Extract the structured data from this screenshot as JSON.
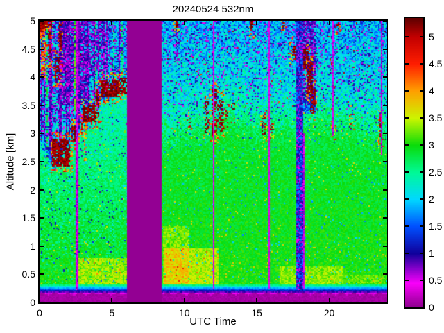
{
  "chart_data": {
    "type": "heatmap",
    "title": "20240524 532nm",
    "xlabel": "UTC Time",
    "ylabel": "Altitude [km]",
    "xlim": [
      0,
      24
    ],
    "ylim": [
      0,
      5
    ],
    "grid": false,
    "xticks": {
      "values": [
        0,
        5,
        10,
        15,
        20
      ],
      "labels": [
        "0",
        "5",
        "10",
        "15",
        "20"
      ]
    },
    "yticks": {
      "values": [
        0,
        0.5,
        1,
        1.5,
        2,
        2.5,
        3,
        3.5,
        4,
        4.5,
        5
      ],
      "labels": [
        "0",
        "0.5",
        "1",
        "1.5",
        "2",
        "2.5",
        "3",
        "3.5",
        "4",
        "4.5",
        "5"
      ]
    },
    "colorbar": {
      "min": 0,
      "max": 5.35,
      "ticks": [
        0,
        0.5,
        1,
        1.5,
        2,
        2.5,
        3,
        3.5,
        4,
        4.5,
        5
      ],
      "labels": [
        "0",
        "0.5",
        "1",
        "1.5",
        "2",
        "2.5",
        "3",
        "3.5",
        "4",
        "4.5",
        "5"
      ],
      "position": "right"
    },
    "colormap": [
      [
        0,
        "#8C008C"
      ],
      [
        0.45,
        "#FA00FA"
      ],
      [
        1,
        "#10009B"
      ],
      [
        1.5,
        "#0050FF"
      ],
      [
        2,
        "#00D8FF"
      ],
      [
        2.5,
        "#00FA96"
      ],
      [
        3,
        "#0ADC0A"
      ],
      [
        3.5,
        "#CCF500"
      ],
      [
        4,
        "#FFA000"
      ],
      [
        4.5,
        "#FF1E00"
      ],
      [
        5,
        "#C30000"
      ],
      [
        5.35,
        "#5F0000"
      ]
    ],
    "field": {
      "comment": "lidar backscatter field: data gap (UTC), aerosol layer-top polylines [t,km], bright near-surface patches, low-signal purple zones, high-backscatter blobs [t0,t1,z0,z1,density,value,jitter], vertical stripes [t,width,z0,z1,value,jitter]",
      "gap": [
        6.05,
        8.43
      ],
      "surface_magenta_top_km": 0.155,
      "surface_blue_band_top_km": 0.31,
      "layer_left": [
        [
          0,
          2.9
        ],
        [
          0.5,
          2.6
        ],
        [
          1.1,
          2.45
        ],
        [
          1.7,
          2.8
        ],
        [
          2.3,
          3.0
        ],
        [
          3.0,
          3.15
        ],
        [
          3.9,
          3.35
        ],
        [
          4.3,
          3.6
        ],
        [
          5.0,
          3.8
        ],
        [
          5.6,
          3.95
        ],
        [
          6.05,
          4.05
        ]
      ],
      "layer_right": [
        [
          8.43,
          3.05
        ],
        [
          9.5,
          3.1
        ],
        [
          10.5,
          3.15
        ],
        [
          11.5,
          3.2
        ],
        [
          12.5,
          3.45
        ],
        [
          13.2,
          3.5
        ],
        [
          14,
          3.35
        ],
        [
          15,
          3.2
        ],
        [
          16,
          3.25
        ],
        [
          17,
          3.3
        ],
        [
          18,
          3.25
        ],
        [
          19,
          3.45
        ],
        [
          20,
          3.35
        ],
        [
          21,
          3.25
        ],
        [
          22.5,
          3.2
        ],
        [
          24,
          3.1
        ]
      ],
      "patches": [
        [
          2.6,
          6.0,
          0.33,
          0.78,
          0.55
        ],
        [
          8.5,
          10.3,
          0.3,
          1.35,
          0.4
        ],
        [
          8.6,
          12.4,
          0.28,
          0.95,
          0.55
        ],
        [
          16.6,
          21.0,
          0.28,
          0.65,
          0.4
        ],
        [
          21.0,
          23.9,
          0.25,
          0.5,
          0.25
        ]
      ],
      "purple_zones": [
        [
          1.55,
          3.45,
          3.5,
          5.0,
          0.85
        ],
        [
          3.45,
          4.55,
          4.05,
          5.0,
          0.55
        ],
        [
          0.85,
          1.55,
          3.1,
          5.0,
          0.45
        ],
        [
          4.55,
          6.05,
          4.3,
          5.0,
          0.3
        ],
        [
          17.7,
          19.05,
          3.35,
          5.0,
          0.8
        ],
        [
          9.2,
          9.7,
          4.2,
          5.0,
          0.45
        ]
      ],
      "blobs": [
        [
          0.0,
          0.85,
          4.8,
          5.0,
          0.9,
          4.9,
          0.5
        ],
        [
          0.05,
          0.5,
          4.0,
          4.85,
          0.55,
          3.5,
          1.3
        ],
        [
          0.55,
          0.8,
          4.3,
          4.8,
          0.55,
          4.8,
          0.6
        ],
        [
          1.32,
          1.5,
          4.45,
          4.95,
          0.65,
          4.9,
          0.5
        ],
        [
          1.1,
          1.4,
          3.95,
          4.35,
          0.6,
          4.9,
          0.5
        ],
        [
          2.42,
          2.62,
          3.4,
          5.0,
          0.75,
          2.8,
          0.6
        ],
        [
          0.9,
          2.15,
          2.42,
          2.9,
          0.85,
          4.95,
          0.45
        ],
        [
          2.2,
          2.6,
          2.85,
          3.12,
          0.7,
          4.95,
          0.45
        ],
        [
          2.85,
          3.0,
          3.0,
          3.3,
          0.7,
          4.95,
          0.45
        ],
        [
          3.0,
          3.95,
          3.2,
          3.5,
          0.85,
          4.95,
          0.45
        ],
        [
          3.02,
          3.22,
          2.5,
          3.2,
          0.45,
          3.6,
          1.0
        ],
        [
          3.95,
          4.15,
          3.3,
          3.85,
          0.6,
          4.9,
          0.6
        ],
        [
          4.2,
          5.55,
          3.65,
          3.95,
          0.85,
          4.95,
          0.45
        ],
        [
          5.6,
          6.0,
          3.7,
          4.0,
          0.7,
          4.95,
          0.45
        ],
        [
          11.4,
          11.65,
          3.0,
          3.6,
          0.45,
          4.9,
          0.5
        ],
        [
          11.9,
          12.25,
          2.95,
          3.8,
          0.55,
          4.9,
          0.5
        ],
        [
          12.3,
          12.75,
          3.0,
          3.65,
          0.5,
          4.9,
          0.5
        ],
        [
          12.8,
          13.05,
          3.1,
          3.45,
          0.4,
          4.9,
          0.5
        ],
        [
          13.35,
          13.55,
          3.3,
          3.6,
          0.35,
          4.9,
          0.5
        ],
        [
          15.35,
          15.6,
          2.95,
          3.3,
          0.45,
          4.9,
          0.5
        ],
        [
          15.8,
          16.1,
          3.0,
          3.3,
          0.4,
          4.9,
          0.5
        ],
        [
          10.3,
          10.45,
          3.1,
          3.3,
          0.35,
          4.9,
          0.5
        ],
        [
          17.4,
          17.8,
          4.3,
          4.6,
          0.5,
          4.9,
          0.5
        ],
        [
          18.25,
          18.6,
          4.15,
          4.5,
          0.75,
          5.0,
          0.4
        ],
        [
          18.5,
          18.85,
          3.7,
          4.25,
          0.7,
          5.0,
          0.4
        ],
        [
          18.7,
          19.05,
          3.35,
          3.8,
          0.6,
          4.95,
          0.4
        ],
        [
          9.35,
          9.55,
          4.85,
          5.0,
          0.6,
          4.9,
          0.5
        ],
        [
          14.55,
          14.75,
          4.8,
          5.0,
          0.5,
          4.9,
          0.5
        ],
        [
          16.75,
          16.95,
          4.85,
          5.0,
          0.5,
          4.9,
          0.5
        ],
        [
          20.2,
          20.34,
          3.0,
          3.35,
          0.6,
          4.9,
          0.5
        ],
        [
          20.5,
          20.7,
          4.85,
          5.0,
          0.4,
          4.9,
          0.5
        ],
        [
          21.45,
          21.6,
          3.05,
          3.25,
          0.45,
          4.9,
          0.5
        ],
        [
          23.4,
          23.52,
          2.75,
          3.3,
          0.6,
          3.6,
          0.8
        ],
        [
          23.52,
          23.68,
          2.9,
          3.3,
          0.55,
          4.8,
          0.5
        ]
      ],
      "stripes": [
        [
          2.62,
          0.2,
          0.22,
          5.0,
          0.55,
          0.5
        ],
        [
          12.02,
          0.1,
          0.25,
          5.0,
          0.45,
          0.35
        ],
        [
          15.82,
          0.1,
          0.25,
          5.0,
          0.45,
          0.35
        ],
        [
          17.95,
          0.45,
          0.22,
          5.0,
          1.1,
          1.3
        ],
        [
          18.28,
          0.1,
          0.25,
          3.0,
          0.6,
          0.4
        ],
        [
          20.27,
          0.1,
          2.95,
          5.0,
          0.55,
          0.4
        ],
        [
          23.58,
          0.1,
          2.6,
          5.0,
          0.6,
          0.4
        ]
      ]
    }
  }
}
